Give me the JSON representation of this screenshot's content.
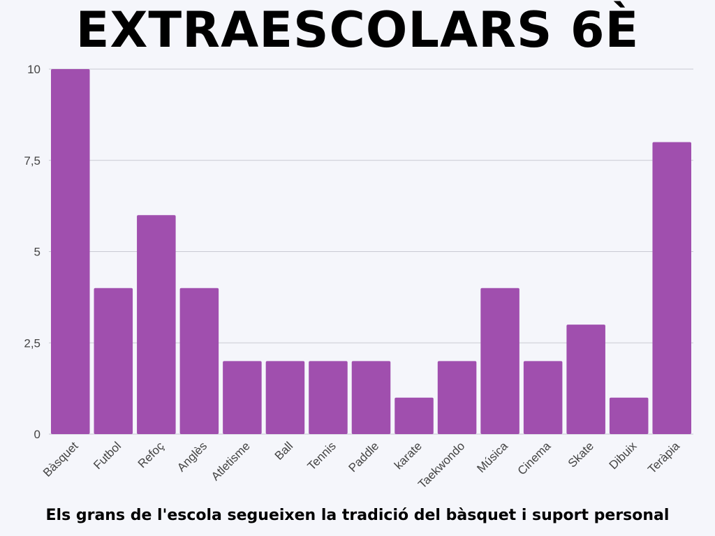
{
  "title": "EXTRAESCOLARS 6È",
  "caption": "Els grans de l'escola segueixen la tradició del bàsquet i suport personal",
  "colors": {
    "bar": "#a04fae",
    "grid": "#c9cad3",
    "background": "#f5f6fb"
  },
  "chart_data": {
    "type": "bar",
    "title": "EXTRAESCOLARS 6È",
    "xlabel": "",
    "ylabel": "",
    "ylim": [
      0,
      10
    ],
    "yticks": [
      0,
      2.5,
      5,
      7.5,
      10
    ],
    "ytick_labels": [
      "0",
      "2,5",
      "5",
      "7,5",
      "10"
    ],
    "grid": true,
    "categories": [
      "Bàsquet",
      "Futbol",
      "Refoç",
      "Anglès",
      "Atletisme",
      "Ball",
      "Tennis",
      "Paddle",
      "karate",
      "Taekwondo",
      "Música",
      "Cinema",
      "Skate",
      "Dibuix",
      "Teràpia"
    ],
    "values": [
      10,
      4,
      6,
      4,
      2,
      2,
      2,
      2,
      1,
      2,
      4,
      2,
      3,
      1,
      8
    ]
  }
}
